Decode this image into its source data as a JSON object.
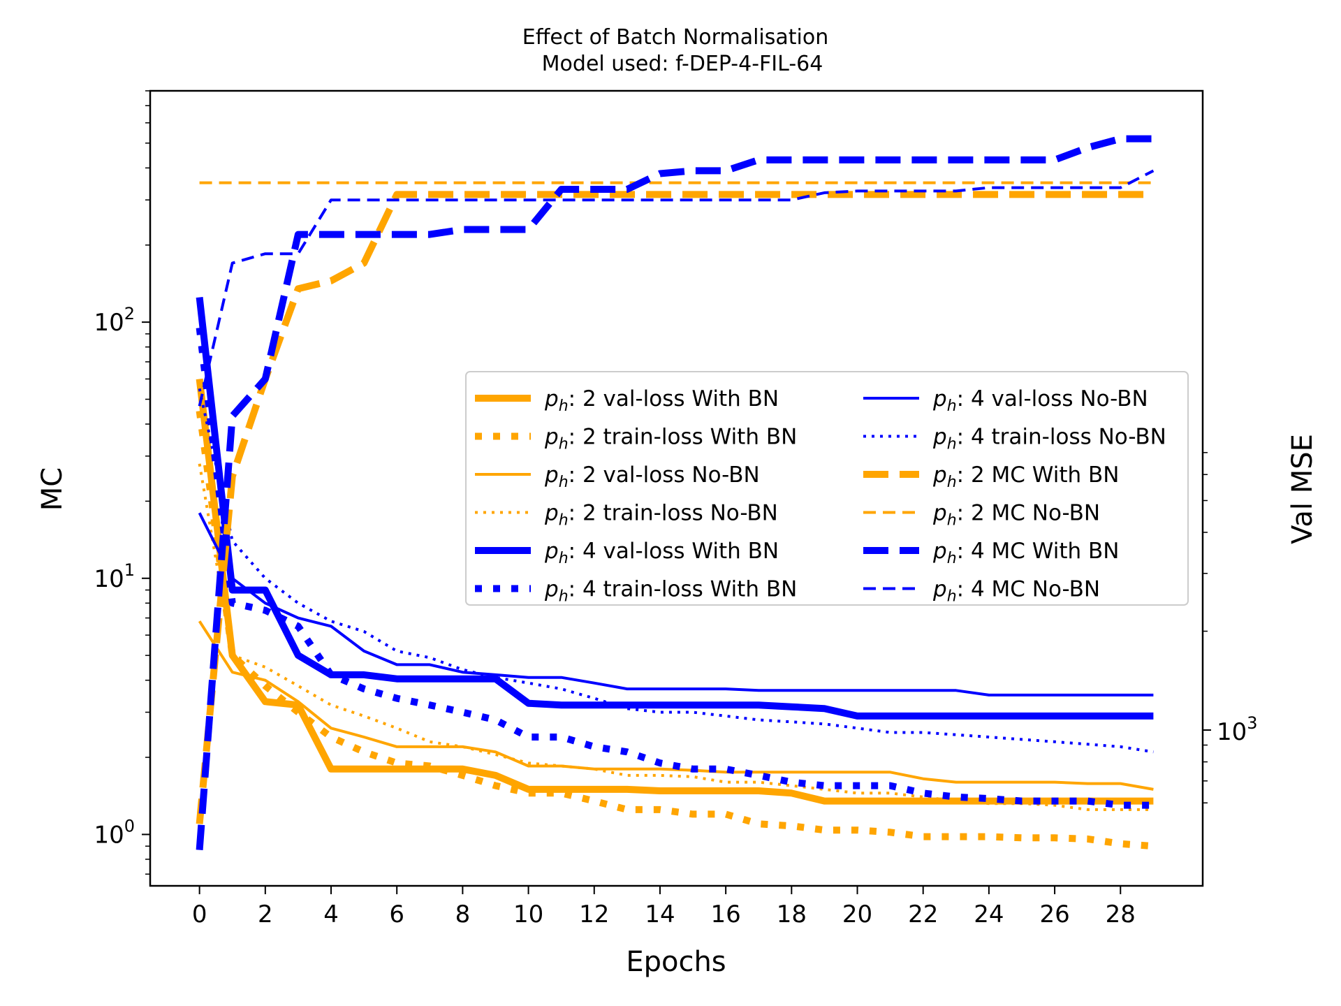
{
  "chart_data": {
    "type": "line",
    "title": "Effect of Batch Normalisation",
    "subtitle": "Model used: f-DEP-4-FIL-64",
    "xlabel": "Epochs",
    "ylabel": "MC",
    "y2label": "Val MSE",
    "x_ticks": [
      "0",
      "2",
      "4",
      "6",
      "8",
      "10",
      "12",
      "14",
      "16",
      "18",
      "20",
      "22",
      "24",
      "26",
      "28"
    ],
    "xlim": [
      -1.5,
      30.5
    ],
    "ylim": [
      0.63,
      800
    ],
    "yscale": "log",
    "y_ticks": [
      {
        "value": 1,
        "base": "10",
        "exp": "0"
      },
      {
        "value": 10,
        "base": "10",
        "exp": "1"
      },
      {
        "value": 100,
        "base": "10",
        "exp": "2"
      }
    ],
    "y2scale": "log",
    "y2_ticks": [
      {
        "value": 1000,
        "base": "10",
        "exp": "3"
      }
    ],
    "legend_placement": "center-right",
    "legend": [
      {
        "prefix": "p",
        "sub": "h",
        "text": ": 2 val-loss With BN",
        "series": 0
      },
      {
        "prefix": "p",
        "sub": "h",
        "text": ": 2 train-loss With BN",
        "series": 1
      },
      {
        "prefix": "p",
        "sub": "h",
        "text": ": 2 val-loss No-BN",
        "series": 2
      },
      {
        "prefix": "p",
        "sub": "h",
        "text": ": 2 train-loss No-BN",
        "series": 3
      },
      {
        "prefix": "p",
        "sub": "h",
        "text": ": 4 val-loss With BN",
        "series": 4
      },
      {
        "prefix": "p",
        "sub": "h",
        "text": ": 4 train-loss With BN",
        "series": 5
      },
      {
        "prefix": "p",
        "sub": "h",
        "text": ": 4 val-loss No-BN",
        "series": 6
      },
      {
        "prefix": "p",
        "sub": "h",
        "text": ": 4 train-loss No-BN",
        "series": 7
      },
      {
        "prefix": "p",
        "sub": "h",
        "text": ": 2 MC With BN",
        "series": 8
      },
      {
        "prefix": "p",
        "sub": "h",
        "text": ": 2 MC No-BN",
        "series": 9
      },
      {
        "prefix": "p",
        "sub": "h",
        "text": ": 4 MC With BN",
        "series": 10
      },
      {
        "prefix": "p",
        "sub": "h",
        "text": ": 4 MC No-BN",
        "series": 11
      }
    ],
    "series": [
      {
        "color": "#FFA500",
        "style": "solid-thick",
        "values": [
          60,
          5,
          3.3,
          3.2,
          1.8,
          1.8,
          1.8,
          1.8,
          1.8,
          1.7,
          1.5,
          1.5,
          1.5,
          1.5,
          1.48,
          1.48,
          1.48,
          1.48,
          1.45,
          1.35,
          1.35,
          1.35,
          1.35,
          1.35,
          1.35,
          1.35,
          1.35,
          1.35,
          1.35,
          1.35
        ]
      },
      {
        "color": "#FFA500",
        "style": "dotted-thick",
        "values": [
          45,
          5,
          3.8,
          3.0,
          2.4,
          2.1,
          1.9,
          1.85,
          1.7,
          1.55,
          1.45,
          1.45,
          1.35,
          1.25,
          1.25,
          1.2,
          1.2,
          1.1,
          1.08,
          1.04,
          1.04,
          1.02,
          0.98,
          0.98,
          0.98,
          0.97,
          0.97,
          0.96,
          0.92,
          0.9
        ]
      },
      {
        "color": "#FFA500",
        "style": "solid-thin",
        "values": [
          6.8,
          4.3,
          4.0,
          3.3,
          2.6,
          2.4,
          2.2,
          2.2,
          2.2,
          2.1,
          1.85,
          1.85,
          1.8,
          1.8,
          1.8,
          1.78,
          1.75,
          1.75,
          1.75,
          1.75,
          1.75,
          1.75,
          1.65,
          1.6,
          1.6,
          1.6,
          1.6,
          1.58,
          1.58,
          1.5
        ]
      },
      {
        "color": "#FFA500",
        "style": "dotted-thin",
        "values": [
          28,
          5,
          4.5,
          3.8,
          3.2,
          2.9,
          2.6,
          2.3,
          2.2,
          2.05,
          1.9,
          1.85,
          1.8,
          1.7,
          1.7,
          1.68,
          1.6,
          1.6,
          1.55,
          1.5,
          1.45,
          1.45,
          1.4,
          1.35,
          1.32,
          1.32,
          1.3,
          1.25,
          1.25,
          1.25
        ]
      },
      {
        "color": "#0000FF",
        "style": "solid-thick",
        "values": [
          125,
          9,
          9,
          5,
          4.2,
          4.2,
          4.05,
          4.05,
          4.05,
          4.05,
          3.25,
          3.2,
          3.2,
          3.2,
          3.2,
          3.2,
          3.2,
          3.2,
          3.15,
          3.1,
          2.9,
          2.9,
          2.9,
          2.9,
          2.9,
          2.9,
          2.9,
          2.9,
          2.9,
          2.9
        ]
      },
      {
        "color": "#0000FF",
        "style": "dotted-thick",
        "values": [
          95,
          8,
          7.5,
          6.5,
          4.2,
          3.7,
          3.4,
          3.2,
          3.0,
          2.8,
          2.4,
          2.4,
          2.2,
          2.1,
          1.9,
          1.8,
          1.8,
          1.7,
          1.6,
          1.55,
          1.55,
          1.55,
          1.45,
          1.4,
          1.38,
          1.35,
          1.35,
          1.35,
          1.3,
          1.3
        ]
      },
      {
        "color": "#0000FF",
        "style": "solid-thin",
        "values": [
          18,
          10,
          8,
          7,
          6.5,
          5.2,
          4.6,
          4.6,
          4.3,
          4.2,
          4.1,
          4.1,
          3.9,
          3.7,
          3.7,
          3.7,
          3.7,
          3.65,
          3.65,
          3.65,
          3.65,
          3.65,
          3.65,
          3.65,
          3.5,
          3.5,
          3.5,
          3.5,
          3.5,
          3.5
        ]
      },
      {
        "color": "#0000FF",
        "style": "dotted-thin",
        "values": [
          55,
          14,
          10,
          8,
          6.8,
          6.2,
          5.2,
          4.9,
          4.4,
          4.1,
          3.9,
          3.7,
          3.4,
          3.1,
          3.0,
          3.0,
          2.9,
          2.8,
          2.75,
          2.7,
          2.6,
          2.5,
          2.5,
          2.45,
          2.4,
          2.35,
          2.3,
          2.25,
          2.2,
          2.1
        ]
      },
      {
        "color": "#FFA500",
        "style": "dashed-thick",
        "values": [
          1.1,
          25,
          60,
          135,
          145,
          170,
          315,
          315,
          315,
          315,
          315,
          315,
          315,
          315,
          315,
          315,
          315,
          315,
          315,
          315,
          315,
          315,
          315,
          315,
          315,
          315,
          315,
          315,
          315,
          315
        ]
      },
      {
        "color": "#FFA500",
        "style": "dashed-thin",
        "values": [
          350,
          350,
          350,
          350,
          350,
          350,
          350,
          350,
          350,
          350,
          350,
          350,
          350,
          350,
          350,
          350,
          350,
          350,
          350,
          350,
          350,
          350,
          350,
          350,
          350,
          350,
          350,
          350,
          350,
          350
        ]
      },
      {
        "color": "#0000FF",
        "style": "dashed-thick",
        "values": [
          0.87,
          43,
          60,
          220,
          220,
          220,
          220,
          220,
          230,
          230,
          230,
          330,
          330,
          330,
          380,
          390,
          390,
          430,
          430,
          430,
          430,
          430,
          430,
          430,
          430,
          430,
          430,
          480,
          520,
          520
        ]
      },
      {
        "color": "#0000FF",
        "style": "dashed-thin",
        "values": [
          47,
          170,
          185,
          185,
          300,
          300,
          300,
          300,
          300,
          300,
          300,
          300,
          300,
          300,
          300,
          300,
          300,
          300,
          300,
          320,
          325,
          325,
          325,
          325,
          335,
          335,
          335,
          335,
          335,
          390
        ]
      }
    ]
  }
}
